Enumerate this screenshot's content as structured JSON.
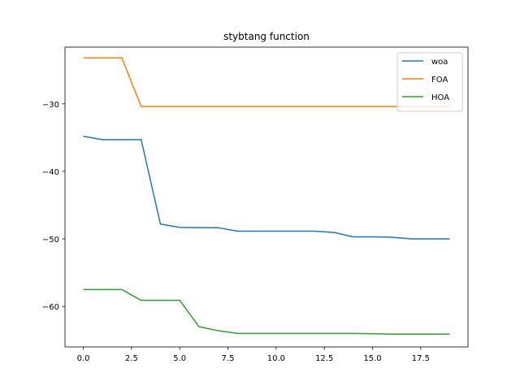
{
  "chart_data": {
    "type": "line",
    "title": "stybtang function",
    "xlabel": "",
    "ylabel": "",
    "xlim": [
      -0.95,
      19.95
    ],
    "ylim": [
      -66.0,
      -21.6
    ],
    "xticks": [
      0.0,
      2.5,
      5.0,
      7.5,
      10.0,
      12.5,
      15.0,
      17.5
    ],
    "xtick_labels": [
      "0.0",
      "2.5",
      "5.0",
      "7.5",
      "10.0",
      "12.5",
      "15.0",
      "17.5"
    ],
    "yticks": [
      -60,
      -50,
      -40,
      -30
    ],
    "ytick_labels": [
      "−60",
      "−50",
      "−40",
      "−30"
    ],
    "grid": false,
    "legend_position": "top-right",
    "x": [
      0,
      1,
      2,
      3,
      4,
      5,
      6,
      7,
      8,
      9,
      10,
      11,
      12,
      13,
      14,
      15,
      16,
      17,
      18,
      19
    ],
    "series": [
      {
        "name": "woa",
        "color": "#1f77b4",
        "values": [
          -34.8,
          -35.3,
          -35.3,
          -35.3,
          -47.8,
          -48.3,
          -48.35,
          -48.35,
          -48.85,
          -48.85,
          -48.85,
          -48.85,
          -48.85,
          -49.05,
          -49.7,
          -49.7,
          -49.75,
          -50.0,
          -50.0,
          -50.0
        ]
      },
      {
        "name": "FOA",
        "color": "#ff7f0e",
        "values": [
          -23.2,
          -23.2,
          -23.2,
          -30.4,
          -30.4,
          -30.4,
          -30.4,
          -30.4,
          -30.4,
          -30.4,
          -30.4,
          -30.4,
          -30.4,
          -30.4,
          -30.4,
          -30.4,
          -30.4,
          -30.4,
          -30.4,
          -30.4
        ]
      },
      {
        "name": "HOA",
        "color": "#2ca02c",
        "values": [
          -57.5,
          -57.5,
          -57.5,
          -59.1,
          -59.1,
          -59.1,
          -63.0,
          -63.6,
          -64.0,
          -64.0,
          -64.0,
          -64.0,
          -64.0,
          -64.0,
          -64.0,
          -64.05,
          -64.1,
          -64.1,
          -64.1,
          -64.1
        ]
      }
    ]
  }
}
